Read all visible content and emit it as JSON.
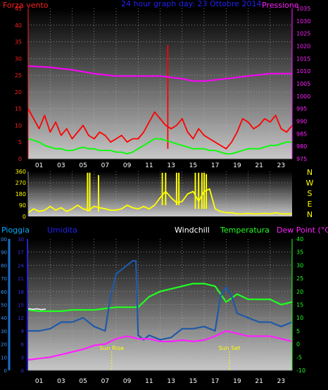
{
  "page": {
    "background": "#000000"
  },
  "chart_data": [
    {
      "type": "line",
      "title": "24 hour graph day:  23 Ottobre 2014",
      "title_color": "#2222ee",
      "left_label": "Forza vento",
      "left_label_color": "#ff2020",
      "right_label": "Pressione",
      "right_label_color": "#ff20ff",
      "x_ticks": [
        "01",
        "03",
        "05",
        "07",
        "09",
        "11",
        "13",
        "15",
        "17",
        "19",
        "21",
        "23"
      ],
      "x_range": [
        0,
        24
      ],
      "y_left": {
        "range": [
          0,
          45
        ],
        "ticks": [
          "0",
          "5",
          "10",
          "15",
          "20",
          "25",
          "30",
          "35",
          "40",
          "45"
        ],
        "color": "#ff2020"
      },
      "y_right": {
        "range": [
          975,
          1035
        ],
        "ticks": [
          "975",
          "980",
          "985",
          "990",
          "995",
          "1000",
          "1005",
          "1010",
          "1015",
          "1020",
          "1025",
          "1030",
          "1035"
        ],
        "color": "#ff20ff"
      },
      "grid": true,
      "series": [
        {
          "color": "#ff0000",
          "axis": "left",
          "x": [
            0,
            0.5,
            1,
            1.5,
            2,
            2.5,
            3,
            3.5,
            4,
            4.5,
            5,
            5.5,
            6,
            6.5,
            7,
            7.5,
            8,
            8.5,
            9,
            9.5,
            10,
            10.5,
            11,
            11.5,
            12,
            12.5,
            13,
            13.5,
            14,
            14.5,
            15,
            15.5,
            16,
            16.5,
            17,
            17.5,
            18,
            18.5,
            19,
            19.5,
            20,
            20.5,
            21,
            21.5,
            22,
            22.5,
            23,
            23.5,
            24
          ],
          "values": [
            15,
            12,
            9,
            13,
            8,
            11,
            7,
            9,
            6,
            8,
            10,
            7,
            6,
            8,
            7,
            5,
            6,
            7,
            5,
            6,
            6,
            8,
            11,
            14,
            12,
            10,
            9,
            10,
            12,
            8,
            6,
            9,
            7,
            6,
            5,
            4,
            3,
            5,
            8,
            12,
            11,
            9,
            10,
            12,
            11,
            13,
            9,
            8,
            10
          ]
        },
        {
          "color": "#ff0000",
          "axis": "left",
          "x": [
            12.7,
            12.7
          ],
          "values": [
            3,
            34
          ]
        },
        {
          "color": "#00ff00",
          "axis": "left",
          "x": [
            0,
            0.5,
            1,
            1.5,
            2,
            2.5,
            3,
            3.5,
            4,
            4.5,
            5,
            5.5,
            6,
            6.5,
            7,
            7.5,
            8,
            8.5,
            9,
            9.5,
            10,
            10.5,
            11,
            11.5,
            12,
            12.5,
            13,
            13.5,
            14,
            14.5,
            15,
            15.5,
            16,
            16.5,
            17,
            17.5,
            18,
            18.5,
            19,
            19.5,
            20,
            20.5,
            21,
            21.5,
            22,
            22.5,
            23,
            23.5,
            24
          ],
          "values": [
            6,
            5.5,
            5,
            4,
            3.5,
            3,
            3,
            2.5,
            2.5,
            3,
            3.5,
            3,
            3,
            2.5,
            2.5,
            2.5,
            2,
            2,
            1.5,
            2,
            3,
            4,
            5,
            6,
            6,
            5.5,
            5,
            4.5,
            4,
            3.5,
            3,
            3,
            3,
            2.5,
            2.5,
            2,
            1.5,
            1.5,
            2,
            2.5,
            3,
            3,
            3,
            3.5,
            4,
            4,
            4.5,
            5,
            5
          ]
        },
        {
          "color": "#ff00ff",
          "axis": "right",
          "x": [
            0,
            2,
            4,
            6,
            8,
            10,
            12,
            13,
            14,
            15,
            16,
            17,
            18,
            19,
            20,
            21,
            22,
            23,
            24
          ],
          "values": [
            1012,
            1011.5,
            1010.5,
            1009,
            1008,
            1008,
            1008,
            1007.5,
            1007,
            1006,
            1006,
            1006.5,
            1007,
            1007.5,
            1008,
            1008.5,
            1009,
            1009,
            1009
          ]
        }
      ]
    },
    {
      "type": "line",
      "title": "",
      "x_range": [
        0,
        24
      ],
      "y_left": {
        "range": [
          0,
          360
        ],
        "ticks": [
          "0",
          "90",
          "180",
          "270",
          "360"
        ],
        "color": "#ffff00"
      },
      "right_letters": [
        "N",
        "W",
        "S",
        "E",
        "N"
      ],
      "right_letters_color": "#ffff00",
      "grid": true,
      "series": [
        {
          "color": "#ffff00",
          "axis": "left",
          "x": [
            0,
            0.5,
            1,
            1.5,
            2,
            2.5,
            3,
            3.5,
            4,
            4.5,
            5,
            5.5,
            6,
            6.5,
            7,
            7.5,
            8,
            8.5,
            9,
            9.5,
            10,
            10.5,
            11,
            11.5,
            12,
            12.5,
            13,
            13.5,
            14,
            14.5,
            15,
            15.5,
            16,
            16.5,
            17,
            17.5,
            18,
            18.5,
            19,
            19.5,
            20,
            20.5,
            21,
            21.5,
            22,
            22.5,
            23,
            23.5,
            24
          ],
          "values": [
            30,
            60,
            40,
            50,
            80,
            50,
            70,
            40,
            60,
            90,
            60,
            50,
            80,
            70,
            60,
            50,
            50,
            60,
            90,
            70,
            60,
            80,
            60,
            90,
            150,
            200,
            150,
            110,
            120,
            180,
            200,
            120,
            200,
            220,
            60,
            40,
            30,
            30,
            20,
            20,
            25,
            20,
            20,
            25,
            20,
            30,
            20,
            20,
            20
          ]
        },
        {
          "color": "#ffff00",
          "axis": "left",
          "x": [
            5.4,
            5.4,
            5.6,
            5.6,
            6.4,
            6.4,
            12.2,
            12.2,
            12.5,
            12.5,
            13.5,
            13.5,
            13.7,
            13.7,
            15.2,
            15.2,
            15.5,
            15.5,
            15.8,
            15.8,
            16,
            16,
            16.2,
            16.2
          ],
          "values": [
            40,
            350,
            350,
            40,
            40,
            330,
            90,
            350,
            350,
            90,
            90,
            350,
            350,
            90,
            60,
            350,
            350,
            60,
            60,
            350,
            350,
            60,
            60,
            340
          ]
        }
      ]
    },
    {
      "type": "line",
      "title": "",
      "labels": [
        {
          "text": "Pioggia",
          "color": "#00aaff"
        },
        {
          "text": "Umidita",
          "color": "#2222ee"
        },
        {
          "text": "Windchill",
          "color": "#ffffff"
        },
        {
          "text": "Temperatura",
          "color": "#20ff20"
        },
        {
          "text": "Dew Point (°C)",
          "color": "#ff20ff"
        }
      ],
      "unit_label": "",
      "y_left_outer": {
        "range": [
          0,
          100
        ],
        "ticks": [
          "0",
          "10",
          "20",
          "30",
          "40",
          "50",
          "60",
          "70",
          "80",
          "90",
          "100"
        ],
        "color": "#3399ff"
      },
      "y_left_inner": {
        "range": [
          0,
          30
        ],
        "ticks": [
          "0",
          "3",
          "6",
          "9",
          "12",
          "15",
          "18",
          "21",
          "24",
          "27",
          "30"
        ],
        "color": "#3333ee"
      },
      "y_right": {
        "range": [
          -10,
          40
        ],
        "ticks": [
          "-10",
          "-5",
          "0",
          "5",
          "10",
          "15",
          "20",
          "25",
          "30",
          "35",
          "40"
        ],
        "color": "#20ff20"
      },
      "x_ticks": [
        "01",
        "03",
        "05",
        "07",
        "09",
        "11",
        "13",
        "15",
        "17",
        "19",
        "21",
        "23"
      ],
      "x_range": [
        0,
        24
      ],
      "grid": true,
      "annotations": [
        {
          "text": "Sun Rise",
          "x": 7.6
        },
        {
          "text": "Sun Set",
          "x": 18.3
        }
      ],
      "series": [
        {
          "color": "#20ff20",
          "axis": "right",
          "x": [
            0,
            1,
            2,
            3,
            4,
            5,
            6,
            7,
            8,
            9,
            10,
            11,
            12,
            13,
            14,
            15,
            16,
            17,
            18,
            19,
            20,
            21,
            22,
            23,
            24
          ],
          "values": [
            13,
            12.5,
            12.5,
            12.5,
            13,
            13,
            13,
            13.5,
            14,
            14,
            14,
            18,
            20,
            21,
            22,
            23,
            23,
            22,
            16,
            19,
            17,
            17,
            17,
            15,
            16
          ]
        },
        {
          "color": "#ffffff",
          "axis": "right",
          "x": [
            0,
            0.4,
            0.8,
            1.2,
            1.6
          ],
          "values": [
            13.5,
            13.2,
            13.4,
            13.1,
            13.3
          ]
        },
        {
          "color": "#1e5aa8",
          "axis": "left_inner",
          "x": [
            0,
            1,
            2,
            3,
            4,
            5,
            6,
            7,
            7.5,
            8,
            8.5,
            9,
            9.5,
            9.8,
            10,
            10.5,
            11,
            12,
            13,
            14,
            15,
            16,
            17,
            17.5,
            18,
            18.5,
            19,
            20,
            21,
            22,
            23,
            24
          ],
          "values": [
            9,
            9,
            9.5,
            11,
            11,
            12,
            10,
            9,
            17,
            22,
            23,
            24,
            25,
            25,
            8,
            7,
            8,
            7,
            7.5,
            9.5,
            9.5,
            10,
            9,
            17,
            19,
            17,
            13,
            12,
            11,
            11,
            10,
            11
          ]
        },
        {
          "color": "#ff20ff",
          "axis": "right",
          "x": [
            0,
            1,
            2,
            3,
            4,
            5,
            6,
            7,
            8,
            9,
            10,
            11,
            12,
            13,
            14,
            15,
            16,
            17,
            18,
            19,
            20,
            21,
            22,
            23,
            24
          ],
          "values": [
            -6,
            -5.5,
            -5,
            -4,
            -3,
            -2,
            -0.5,
            0,
            2,
            3,
            2,
            2,
            1,
            1,
            1.5,
            1,
            1.5,
            3,
            5,
            4,
            3,
            3,
            3,
            2,
            1
          ]
        }
      ]
    }
  ]
}
